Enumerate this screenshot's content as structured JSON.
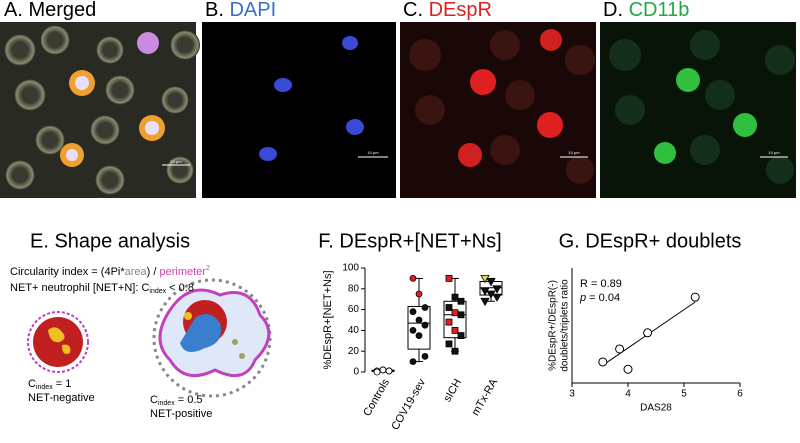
{
  "panels": [
    {
      "title": [
        {
          "text": "A. Merged",
          "color": "#000000"
        }
      ],
      "scale_bar": "10 µm"
    },
    {
      "title": [
        {
          "text": "B. ",
          "color": "#000000"
        },
        {
          "text": "DAPI",
          "color": "#3a6fc4"
        }
      ],
      "scale_bar": "10 µm"
    },
    {
      "title": [
        {
          "text": "C. ",
          "color": "#000000"
        },
        {
          "text": "DEspR",
          "color": "#e02020"
        }
      ],
      "scale_bar": "10 µm"
    },
    {
      "title": [
        {
          "text": "D. ",
          "color": "#000000"
        },
        {
          "text": "CD11b",
          "color": "#22a845"
        }
      ],
      "scale_bar": "10 µm"
    }
  ],
  "shape_analysis": {
    "title": "E. Shape analysis",
    "formula": [
      "Circularity index = (4Pi*",
      "area",
      ") / ",
      "perimeter",
      "2"
    ],
    "criterion": [
      "NET+ neutrophil [NET+N]: C",
      "index",
      " < 0.8"
    ],
    "cells": [
      {
        "c": "C",
        "sub": "index",
        "eq": " = 1",
        "label": "NET-negative"
      },
      {
        "c": "C",
        "sub": "index",
        "eq": " = 0.5",
        "label": "NET-positive"
      }
    ]
  },
  "chart_data": [
    {
      "type": "box",
      "title": "F. DEspR+[NET+Ns]",
      "y_label": "%DEspR+[NET+Ns]",
      "categories": [
        "Controls",
        "COV19-sev",
        "sICH",
        "mTx-RA"
      ],
      "ylim": [
        0,
        100
      ],
      "yticks": [
        0,
        20,
        40,
        60,
        80,
        100
      ],
      "boxes": [
        {
          "min": 0,
          "q1": 0.5,
          "median": 1,
          "q3": 1.8,
          "max": 2,
          "points": [
            1,
            2,
            1,
            0,
            2,
            1
          ],
          "point_colors": [
            "#ffffff",
            "#ffffff",
            "#ffffff",
            "#ffffff",
            "#ffffff",
            "#ffffff"
          ],
          "marker": "circle"
        },
        {
          "min": 10,
          "q1": 22,
          "median": 47,
          "q3": 63,
          "max": 90,
          "points": [
            90,
            75,
            62,
            58,
            50,
            45,
            40,
            35,
            15,
            10
          ],
          "point_colors": [
            "#e02020",
            "#e02020",
            "#111111",
            "#111111",
            "#111111",
            "#111111",
            "#111111",
            "#111111",
            "#111111",
            "#111111"
          ],
          "marker": "circle"
        },
        {
          "min": 20,
          "q1": 33,
          "median": 55,
          "q3": 68,
          "max": 90,
          "points": [
            90,
            72,
            68,
            62,
            57,
            55,
            48,
            40,
            35,
            27,
            20
          ],
          "point_colors": [
            "#e02020",
            "#111111",
            "#111111",
            "#111111",
            "#e02020",
            "#111111",
            "#e02020",
            "#e02020",
            "#111111",
            "#111111",
            "#111111"
          ],
          "marker": "square"
        },
        {
          "min": 68,
          "q1": 74,
          "median": 81,
          "q3": 87,
          "max": 90,
          "points": [
            90,
            87,
            80,
            78,
            75,
            72,
            68
          ],
          "point_colors": [
            "#e8d84a",
            "#111111",
            "#111111",
            "#111111",
            "#111111",
            "#111111",
            "#111111"
          ],
          "marker": "triangle"
        }
      ]
    },
    {
      "type": "scatter",
      "title": "G. DEspR+ doublets",
      "x_label": "DAS28",
      "y_label": [
        "%DEspR+/DEspR(-)",
        "doublets/triplets ratio"
      ],
      "annotations": [
        [
          "R = 0.89"
        ],
        [
          "p",
          " = 0.04"
        ]
      ],
      "x": [
        3.55,
        3.85,
        4.0,
        4.35,
        5.2
      ],
      "values": [
        0.5,
        1.3,
        0.05,
        2.3,
        4.5
      ],
      "fit_line": {
        "x": [
          3.55,
          5.2
        ],
        "y": [
          0.3,
          4.2
        ]
      },
      "xlim": [
        3,
        6
      ],
      "xticks": [
        3,
        4,
        5,
        6
      ],
      "ylim": [
        -0.8,
        6.3
      ]
    }
  ]
}
